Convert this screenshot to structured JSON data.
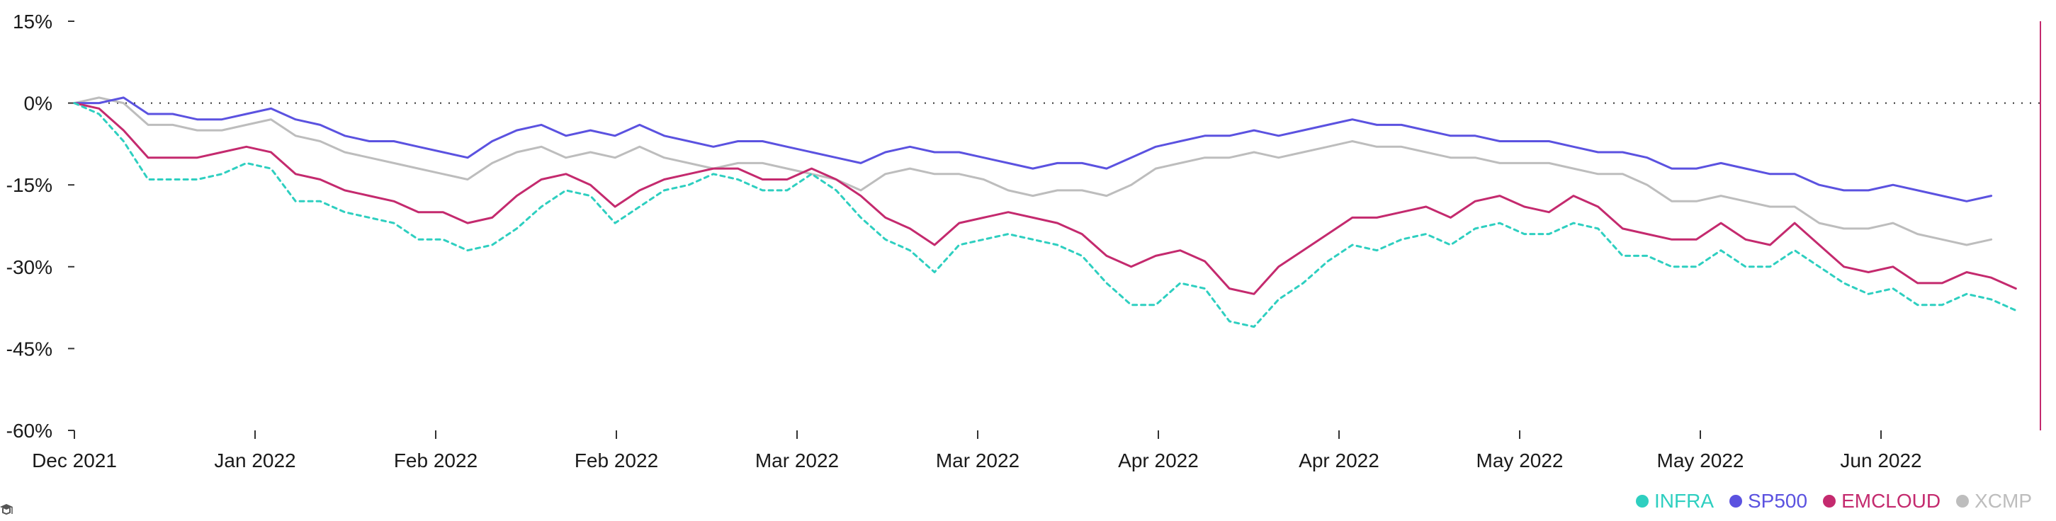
{
  "chart_data": {
    "type": "line",
    "x_ticks": [
      "Dec 2021",
      "Jan 2022",
      "Feb 2022",
      "Feb 2022",
      "Mar 2022",
      "Mar 2022",
      "Apr 2022",
      "Apr 2022",
      "May 2022",
      "May 2022",
      "Jun 2022"
    ],
    "y_ticks": [
      "15%",
      "0%",
      "-15%",
      "-30%",
      "-45%",
      "-60%"
    ],
    "y_tick_values": [
      15,
      0,
      -15,
      -30,
      -45,
      -60
    ],
    "ylim": [
      -60,
      15
    ],
    "x_range": [
      0,
      160
    ],
    "zero_line": "dotted",
    "legend_position": "bottom-right",
    "series": [
      {
        "name": "INFRA",
        "color": "#2ecfc0",
        "dash": true,
        "points": [
          [
            0,
            0
          ],
          [
            2,
            -2
          ],
          [
            4,
            -7
          ],
          [
            6,
            -14
          ],
          [
            8,
            -14
          ],
          [
            10,
            -14
          ],
          [
            12,
            -13
          ],
          [
            14,
            -11
          ],
          [
            16,
            -12
          ],
          [
            18,
            -18
          ],
          [
            20,
            -18
          ],
          [
            22,
            -20
          ],
          [
            24,
            -21
          ],
          [
            26,
            -22
          ],
          [
            28,
            -25
          ],
          [
            30,
            -25
          ],
          [
            32,
            -27
          ],
          [
            34,
            -26
          ],
          [
            36,
            -23
          ],
          [
            38,
            -19
          ],
          [
            40,
            -16
          ],
          [
            42,
            -17
          ],
          [
            44,
            -22
          ],
          [
            46,
            -19
          ],
          [
            48,
            -16
          ],
          [
            50,
            -15
          ],
          [
            52,
            -13
          ],
          [
            54,
            -14
          ],
          [
            56,
            -16
          ],
          [
            58,
            -16
          ],
          [
            60,
            -13
          ],
          [
            62,
            -16
          ],
          [
            64,
            -21
          ],
          [
            66,
            -25
          ],
          [
            68,
            -27
          ],
          [
            70,
            -31
          ],
          [
            72,
            -26
          ],
          [
            74,
            -25
          ],
          [
            76,
            -24
          ],
          [
            78,
            -25
          ],
          [
            80,
            -26
          ],
          [
            82,
            -28
          ],
          [
            84,
            -33
          ],
          [
            86,
            -37
          ],
          [
            88,
            -37
          ],
          [
            90,
            -33
          ],
          [
            92,
            -34
          ],
          [
            94,
            -40
          ],
          [
            96,
            -41
          ],
          [
            98,
            -36
          ],
          [
            100,
            -33
          ],
          [
            102,
            -29
          ],
          [
            104,
            -26
          ],
          [
            106,
            -27
          ],
          [
            108,
            -25
          ],
          [
            110,
            -24
          ],
          [
            112,
            -26
          ],
          [
            114,
            -23
          ],
          [
            116,
            -22
          ],
          [
            118,
            -24
          ],
          [
            120,
            -24
          ],
          [
            122,
            -22
          ],
          [
            124,
            -23
          ],
          [
            126,
            -28
          ],
          [
            128,
            -28
          ],
          [
            130,
            -30
          ],
          [
            132,
            -30
          ],
          [
            134,
            -27
          ],
          [
            136,
            -30
          ],
          [
            138,
            -30
          ],
          [
            140,
            -27
          ],
          [
            142,
            -30
          ],
          [
            144,
            -33
          ],
          [
            146,
            -35
          ],
          [
            148,
            -34
          ],
          [
            150,
            -37
          ],
          [
            152,
            -37
          ],
          [
            154,
            -35
          ],
          [
            156,
            -36
          ],
          [
            158,
            -38
          ]
        ]
      },
      {
        "name": "SP500",
        "color": "#5b52e0",
        "dash": false,
        "points": [
          [
            0,
            0
          ],
          [
            2,
            0
          ],
          [
            4,
            1
          ],
          [
            6,
            -2
          ],
          [
            8,
            -2
          ],
          [
            10,
            -3
          ],
          [
            12,
            -3
          ],
          [
            14,
            -2
          ],
          [
            16,
            -1
          ],
          [
            18,
            -3
          ],
          [
            20,
            -4
          ],
          [
            22,
            -6
          ],
          [
            24,
            -7
          ],
          [
            26,
            -7
          ],
          [
            28,
            -8
          ],
          [
            30,
            -9
          ],
          [
            32,
            -10
          ],
          [
            34,
            -7
          ],
          [
            36,
            -5
          ],
          [
            38,
            -4
          ],
          [
            40,
            -6
          ],
          [
            42,
            -5
          ],
          [
            44,
            -6
          ],
          [
            46,
            -4
          ],
          [
            48,
            -6
          ],
          [
            50,
            -7
          ],
          [
            52,
            -8
          ],
          [
            54,
            -7
          ],
          [
            56,
            -7
          ],
          [
            58,
            -8
          ],
          [
            60,
            -9
          ],
          [
            62,
            -10
          ],
          [
            64,
            -11
          ],
          [
            66,
            -9
          ],
          [
            68,
            -8
          ],
          [
            70,
            -9
          ],
          [
            72,
            -9
          ],
          [
            74,
            -10
          ],
          [
            76,
            -11
          ],
          [
            78,
            -12
          ],
          [
            80,
            -11
          ],
          [
            82,
            -11
          ],
          [
            84,
            -12
          ],
          [
            86,
            -10
          ],
          [
            88,
            -8
          ],
          [
            90,
            -7
          ],
          [
            92,
            -6
          ],
          [
            94,
            -6
          ],
          [
            96,
            -5
          ],
          [
            98,
            -6
          ],
          [
            100,
            -5
          ],
          [
            102,
            -4
          ],
          [
            104,
            -3
          ],
          [
            106,
            -4
          ],
          [
            108,
            -4
          ],
          [
            110,
            -5
          ],
          [
            112,
            -6
          ],
          [
            114,
            -6
          ],
          [
            116,
            -7
          ],
          [
            118,
            -7
          ],
          [
            120,
            -7
          ],
          [
            122,
            -8
          ],
          [
            124,
            -9
          ],
          [
            126,
            -9
          ],
          [
            128,
            -10
          ],
          [
            130,
            -12
          ],
          [
            132,
            -12
          ],
          [
            134,
            -11
          ],
          [
            136,
            -12
          ],
          [
            138,
            -13
          ],
          [
            140,
            -13
          ],
          [
            142,
            -15
          ],
          [
            144,
            -16
          ],
          [
            146,
            -16
          ],
          [
            148,
            -15
          ],
          [
            150,
            -16
          ],
          [
            152,
            -17
          ],
          [
            154,
            -18
          ],
          [
            156,
            -17
          ]
        ]
      },
      {
        "name": "EMCLOUD",
        "color": "#c42a6e",
        "dash": false,
        "points": [
          [
            0,
            0
          ],
          [
            2,
            -1
          ],
          [
            4,
            -5
          ],
          [
            6,
            -10
          ],
          [
            8,
            -10
          ],
          [
            10,
            -10
          ],
          [
            12,
            -9
          ],
          [
            14,
            -8
          ],
          [
            16,
            -9
          ],
          [
            18,
            -13
          ],
          [
            20,
            -14
          ],
          [
            22,
            -16
          ],
          [
            24,
            -17
          ],
          [
            26,
            -18
          ],
          [
            28,
            -20
          ],
          [
            30,
            -20
          ],
          [
            32,
            -22
          ],
          [
            34,
            -21
          ],
          [
            36,
            -17
          ],
          [
            38,
            -14
          ],
          [
            40,
            -13
          ],
          [
            42,
            -15
          ],
          [
            44,
            -19
          ],
          [
            46,
            -16
          ],
          [
            48,
            -14
          ],
          [
            50,
            -13
          ],
          [
            52,
            -12
          ],
          [
            54,
            -12
          ],
          [
            56,
            -14
          ],
          [
            58,
            -14
          ],
          [
            60,
            -12
          ],
          [
            62,
            -14
          ],
          [
            64,
            -17
          ],
          [
            66,
            -21
          ],
          [
            68,
            -23
          ],
          [
            70,
            -26
          ],
          [
            72,
            -22
          ],
          [
            74,
            -21
          ],
          [
            76,
            -20
          ],
          [
            78,
            -21
          ],
          [
            80,
            -22
          ],
          [
            82,
            -24
          ],
          [
            84,
            -28
          ],
          [
            86,
            -30
          ],
          [
            88,
            -28
          ],
          [
            90,
            -27
          ],
          [
            92,
            -29
          ],
          [
            94,
            -34
          ],
          [
            96,
            -35
          ],
          [
            98,
            -30
          ],
          [
            100,
            -27
          ],
          [
            102,
            -24
          ],
          [
            104,
            -21
          ],
          [
            106,
            -21
          ],
          [
            108,
            -20
          ],
          [
            110,
            -19
          ],
          [
            112,
            -21
          ],
          [
            114,
            -18
          ],
          [
            116,
            -17
          ],
          [
            118,
            -19
          ],
          [
            120,
            -20
          ],
          [
            122,
            -17
          ],
          [
            124,
            -19
          ],
          [
            126,
            -23
          ],
          [
            128,
            -24
          ],
          [
            130,
            -25
          ],
          [
            132,
            -25
          ],
          [
            134,
            -22
          ],
          [
            136,
            -25
          ],
          [
            138,
            -26
          ],
          [
            140,
            -22
          ],
          [
            142,
            -26
          ],
          [
            144,
            -30
          ],
          [
            146,
            -31
          ],
          [
            148,
            -30
          ],
          [
            150,
            -33
          ],
          [
            152,
            -33
          ],
          [
            154,
            -31
          ],
          [
            156,
            -32
          ],
          [
            158,
            -34
          ]
        ]
      },
      {
        "name": "XCMP",
        "color": "#bdbdbd",
        "dash": false,
        "points": [
          [
            0,
            0
          ],
          [
            2,
            1
          ],
          [
            4,
            0
          ],
          [
            6,
            -4
          ],
          [
            8,
            -4
          ],
          [
            10,
            -5
          ],
          [
            12,
            -5
          ],
          [
            14,
            -4
          ],
          [
            16,
            -3
          ],
          [
            18,
            -6
          ],
          [
            20,
            -7
          ],
          [
            22,
            -9
          ],
          [
            24,
            -10
          ],
          [
            26,
            -11
          ],
          [
            28,
            -12
          ],
          [
            30,
            -13
          ],
          [
            32,
            -14
          ],
          [
            34,
            -11
          ],
          [
            36,
            -9
          ],
          [
            38,
            -8
          ],
          [
            40,
            -10
          ],
          [
            42,
            -9
          ],
          [
            44,
            -10
          ],
          [
            46,
            -8
          ],
          [
            48,
            -10
          ],
          [
            50,
            -11
          ],
          [
            52,
            -12
          ],
          [
            54,
            -11
          ],
          [
            56,
            -11
          ],
          [
            58,
            -12
          ],
          [
            60,
            -13
          ],
          [
            62,
            -14
          ],
          [
            64,
            -16
          ],
          [
            66,
            -13
          ],
          [
            68,
            -12
          ],
          [
            70,
            -13
          ],
          [
            72,
            -13
          ],
          [
            74,
            -14
          ],
          [
            76,
            -16
          ],
          [
            78,
            -17
          ],
          [
            80,
            -16
          ],
          [
            82,
            -16
          ],
          [
            84,
            -17
          ],
          [
            86,
            -15
          ],
          [
            88,
            -12
          ],
          [
            90,
            -11
          ],
          [
            92,
            -10
          ],
          [
            94,
            -10
          ],
          [
            96,
            -9
          ],
          [
            98,
            -10
          ],
          [
            100,
            -9
          ],
          [
            102,
            -8
          ],
          [
            104,
            -7
          ],
          [
            106,
            -8
          ],
          [
            108,
            -8
          ],
          [
            110,
            -9
          ],
          [
            112,
            -10
          ],
          [
            114,
            -10
          ],
          [
            116,
            -11
          ],
          [
            118,
            -11
          ],
          [
            120,
            -11
          ],
          [
            122,
            -12
          ],
          [
            124,
            -13
          ],
          [
            126,
            -13
          ],
          [
            128,
            -15
          ],
          [
            130,
            -18
          ],
          [
            132,
            -18
          ],
          [
            134,
            -17
          ],
          [
            136,
            -18
          ],
          [
            138,
            -19
          ],
          [
            140,
            -19
          ],
          [
            142,
            -22
          ],
          [
            144,
            -23
          ],
          [
            146,
            -23
          ],
          [
            148,
            -22
          ],
          [
            150,
            -24
          ],
          [
            152,
            -25
          ],
          [
            154,
            -26
          ],
          [
            156,
            -25
          ]
        ]
      }
    ]
  },
  "legend": {
    "items": [
      {
        "label": "INFRA",
        "color": "#2ecfc0",
        "icon": "dot"
      },
      {
        "label": "SP500",
        "color": "#5b52e0",
        "icon": "dot"
      },
      {
        "label": "EMCLOUD",
        "color": "#c42a6e",
        "icon": "dot"
      },
      {
        "label": "XCMP",
        "color": "#bdbdbd",
        "icon": "dot"
      }
    ]
  },
  "cursor_line": {
    "color": "#c42a6e"
  },
  "corner_icon": {
    "icon": "graduation-cap-icon",
    "color": "#555555"
  }
}
